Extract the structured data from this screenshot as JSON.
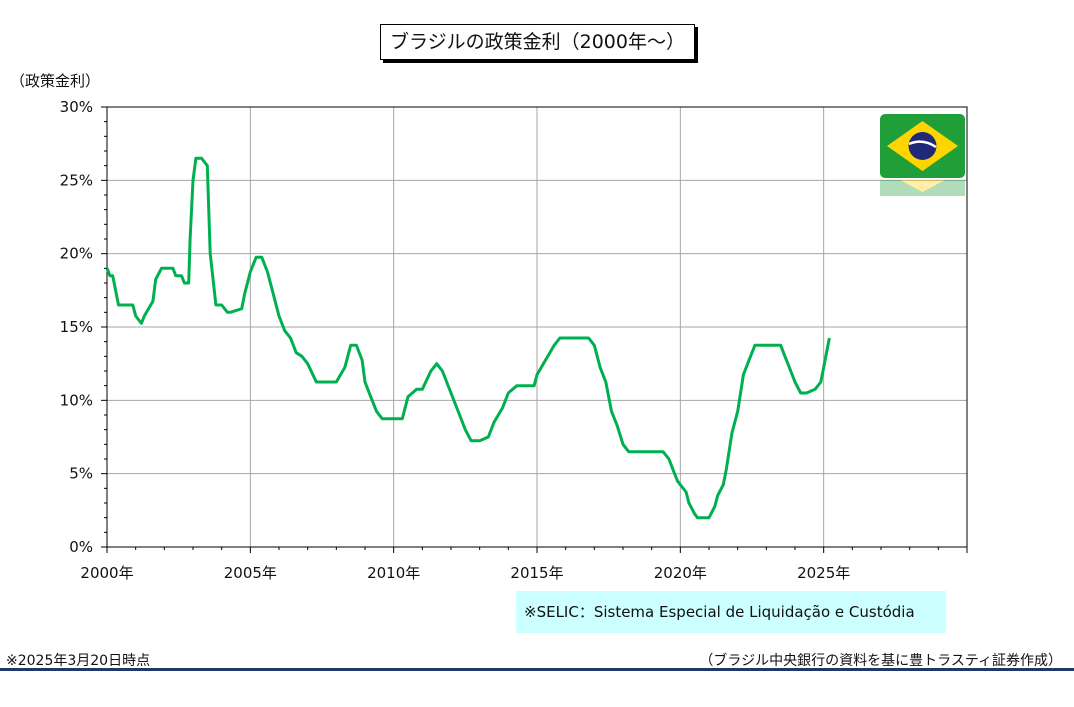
{
  "title": "ブラジルの政策金利（2000年～）",
  "y_axis_title": "（政策金利）",
  "note": "※SELIC：Sistema Especial de Liquidação e Custódia",
  "footer_left": "※2025年3月20日時点",
  "footer_right": "（ブラジル中央銀行の資料を基に豊トラスティ証券作成）",
  "colors": {
    "line": "#00b050",
    "grid": "#a6a6a6",
    "note_bg": "#ccffff",
    "rule": "#1f3864"
  },
  "flag_icon": "brazil-flag-icon",
  "chart_data": {
    "type": "line",
    "title": "ブラジルの政策金利（2000年～）",
    "ylabel": "（政策金利）",
    "xlabel": "",
    "xlim": [
      2000,
      2030
    ],
    "ylim": [
      0,
      30
    ],
    "x_ticks": [
      2000,
      2005,
      2010,
      2015,
      2020,
      2025
    ],
    "x_tick_labels": [
      "2000年",
      "2005年",
      "2010年",
      "2015年",
      "2020年",
      "2025年"
    ],
    "y_ticks": [
      0,
      5,
      10,
      15,
      20,
      25,
      30
    ],
    "y_tick_labels": [
      "0%",
      "5%",
      "10%",
      "15%",
      "20%",
      "25%",
      "30%"
    ],
    "grid": true,
    "series": [
      {
        "values_x": [
          2000.0,
          2000.1,
          2000.2,
          2000.4,
          2000.5,
          2000.9,
          2001.0,
          2001.2,
          2001.3,
          2001.6,
          2001.7,
          2001.9,
          2002.0,
          2002.3,
          2002.4,
          2002.6,
          2002.7,
          2002.85,
          2002.9,
          2003.0,
          2003.1,
          2003.3,
          2003.5,
          2003.6,
          2003.8,
          2004.0,
          2004.2,
          2004.3,
          2004.7,
          2004.8,
          2005.0,
          2005.2,
          2005.4,
          2005.6,
          2005.8,
          2005.9,
          2006.0,
          2006.2,
          2006.4,
          2006.6,
          2006.8,
          2007.0,
          2007.3,
          2007.6,
          2007.8,
          2008.0,
          2008.3,
          2008.5,
          2008.7,
          2008.9,
          2009.0,
          2009.2,
          2009.4,
          2009.6,
          2010.0,
          2010.3,
          2010.5,
          2010.8,
          2011.0,
          2011.3,
          2011.5,
          2011.7,
          2012.0,
          2012.3,
          2012.5,
          2012.7,
          2013.0,
          2013.3,
          2013.5,
          2013.8,
          2014.0,
          2014.3,
          2014.6,
          2014.9,
          2015.0,
          2015.3,
          2015.6,
          2015.8,
          2016.0,
          2016.5,
          2016.8,
          2016.9,
          2017.0,
          2017.2,
          2017.4,
          2017.6,
          2017.8,
          2018.0,
          2018.2,
          2019.0,
          2019.4,
          2019.6,
          2019.8,
          2019.9,
          2020.0,
          2020.2,
          2020.3,
          2020.5,
          2020.6,
          2021.0,
          2021.2,
          2021.3,
          2021.5,
          2021.6,
          2021.8,
          2022.0,
          2022.2,
          2022.4,
          2022.6,
          2022.8,
          2023.0,
          2023.5,
          2023.6,
          2023.8,
          2024.0,
          2024.2,
          2024.4,
          2024.7,
          2024.9,
          2025.0,
          2025.1,
          2025.2
        ],
        "values": [
          19.0,
          18.5,
          18.5,
          16.5,
          16.5,
          16.5,
          15.75,
          15.25,
          15.75,
          16.75,
          18.25,
          19.0,
          19.0,
          19.0,
          18.5,
          18.5,
          18.0,
          18.0,
          21.0,
          25.0,
          26.5,
          26.5,
          26.0,
          20.0,
          16.5,
          16.5,
          16.0,
          16.0,
          16.25,
          17.25,
          18.75,
          19.75,
          19.75,
          18.75,
          17.25,
          16.5,
          15.75,
          14.75,
          14.25,
          13.25,
          13.0,
          12.5,
          11.25,
          11.25,
          11.25,
          11.25,
          12.25,
          13.75,
          13.75,
          12.75,
          11.25,
          10.25,
          9.25,
          8.75,
          8.75,
          8.75,
          10.25,
          10.75,
          10.75,
          12.0,
          12.5,
          12.0,
          10.5,
          9.0,
          8.0,
          7.25,
          7.25,
          7.5,
          8.5,
          9.5,
          10.5,
          11.0,
          11.0,
          11.0,
          11.75,
          12.75,
          13.75,
          14.25,
          14.25,
          14.25,
          14.25,
          14.0,
          13.75,
          12.25,
          11.25,
          9.25,
          8.25,
          7.0,
          6.5,
          6.5,
          6.5,
          6.0,
          5.0,
          4.5,
          4.25,
          3.75,
          3.0,
          2.25,
          2.0,
          2.0,
          2.75,
          3.5,
          4.25,
          5.25,
          7.75,
          9.25,
          11.75,
          12.75,
          13.75,
          13.75,
          13.75,
          13.75,
          13.25,
          12.25,
          11.25,
          10.5,
          10.5,
          10.75,
          11.25,
          12.25,
          13.25,
          14.25
        ]
      }
    ]
  }
}
